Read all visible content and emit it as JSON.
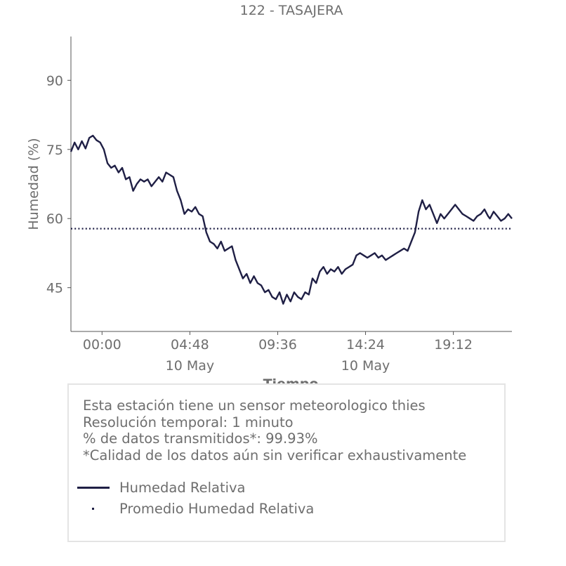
{
  "chart_data": {
    "type": "line",
    "title": "122 - TASAJERA",
    "xlabel": "Tiempo",
    "ylabel": "Humedad (%)",
    "ylim": [
      35.5,
      99.5
    ],
    "xlim_hours": [
      -1.7,
      22.4
    ],
    "y_ticks": [
      45,
      60,
      75,
      90
    ],
    "x_ticks": [
      {
        "value": 0.0,
        "label": "00:00",
        "sublabel": ""
      },
      {
        "value": 4.8,
        "label": "04:48",
        "sublabel": "10 May"
      },
      {
        "value": 9.6,
        "label": "09:36",
        "sublabel": ""
      },
      {
        "value": 14.4,
        "label": "14:24",
        "sublabel": "10 May"
      },
      {
        "value": 19.2,
        "label": "19:12",
        "sublabel": ""
      }
    ],
    "grid": false,
    "series": [
      {
        "name": "Humedad Relativa",
        "color": "#1f1f45",
        "style": "solid",
        "x": [
          -1.7,
          -1.5,
          -1.3,
          -1.1,
          -0.9,
          -0.7,
          -0.5,
          -0.3,
          -0.1,
          0.1,
          0.3,
          0.5,
          0.7,
          0.9,
          1.1,
          1.3,
          1.5,
          1.7,
          1.9,
          2.1,
          2.3,
          2.5,
          2.7,
          2.9,
          3.1,
          3.3,
          3.5,
          3.7,
          3.9,
          4.1,
          4.3,
          4.5,
          4.7,
          4.9,
          5.1,
          5.3,
          5.5,
          5.7,
          5.9,
          6.1,
          6.3,
          6.5,
          6.7,
          6.9,
          7.1,
          7.3,
          7.5,
          7.7,
          7.9,
          8.1,
          8.3,
          8.5,
          8.7,
          8.9,
          9.1,
          9.3,
          9.5,
          9.7,
          9.9,
          10.1,
          10.3,
          10.5,
          10.7,
          10.9,
          11.1,
          11.3,
          11.5,
          11.7,
          11.9,
          12.1,
          12.3,
          12.5,
          12.7,
          12.9,
          13.1,
          13.3,
          13.5,
          13.7,
          13.9,
          14.1,
          14.3,
          14.5,
          14.7,
          14.9,
          15.1,
          15.3,
          15.5,
          15.7,
          15.9,
          16.1,
          16.3,
          16.5,
          16.7,
          16.9,
          17.1,
          17.3,
          17.5,
          17.7,
          17.9,
          18.1,
          18.3,
          18.5,
          18.7,
          18.9,
          19.1,
          19.3,
          19.5,
          19.7,
          19.9,
          20.1,
          20.3,
          20.5,
          20.7,
          20.9,
          21.1,
          21.2,
          21.4,
          21.6,
          21.8,
          22.0,
          22.2,
          22.4
        ],
        "y": [
          74.5,
          76.5,
          75.0,
          76.8,
          75.2,
          77.5,
          78.0,
          77.0,
          76.5,
          75.0,
          72.0,
          71.0,
          71.5,
          70.0,
          71.0,
          68.5,
          69.0,
          66.0,
          67.5,
          68.5,
          68.0,
          68.5,
          67.0,
          68.0,
          69.0,
          68.0,
          70.0,
          69.5,
          69.0,
          66.0,
          64.0,
          61.0,
          62.0,
          61.5,
          62.5,
          61.0,
          60.5,
          57.0,
          55.0,
          54.5,
          53.5,
          55.0,
          53.0,
          53.5,
          54.0,
          51.0,
          49.0,
          47.0,
          48.0,
          46.0,
          47.5,
          46.0,
          45.5,
          44.0,
          44.5,
          43.0,
          42.5,
          44.0,
          41.5,
          43.5,
          42.0,
          44.0,
          43.0,
          42.5,
          44.0,
          43.5,
          47.0,
          46.0,
          48.5,
          49.5,
          48.0,
          49.0,
          48.5,
          49.5,
          48.0,
          49.0,
          49.5,
          50.0,
          52.0,
          52.5,
          52.0,
          51.5,
          52.0,
          52.5,
          51.5,
          52.0,
          51.0,
          51.5,
          52.0,
          52.5,
          53.0,
          53.5,
          53.0,
          55.0,
          57.0,
          61.5,
          64.0,
          62.0,
          63.0,
          61.0,
          59.0,
          61.0,
          60.0,
          61.0,
          62.0,
          63.0,
          62.0,
          61.0,
          60.5,
          60.0,
          59.5,
          60.5,
          61.0,
          62.0,
          60.5,
          60.0,
          61.5,
          60.5,
          59.5,
          60.0,
          61.0,
          60.0
        ]
      },
      {
        "name": "Promedio Humedad Relativa",
        "color": "#1f1f45",
        "style": "dotted",
        "constant": 57.8
      }
    ]
  },
  "info": {
    "line1": "Esta estación tiene un sensor meteorologico thies",
    "line2": "Resolución temporal: 1 minuto",
    "line3": "% de datos transmitidos*: 99.93%",
    "line4": "*Calidad de los datos aún sin verificar exhaustivamente"
  },
  "legend": [
    {
      "label": "Humedad Relativa"
    },
    {
      "label": "Promedio Humedad Relativa"
    }
  ]
}
